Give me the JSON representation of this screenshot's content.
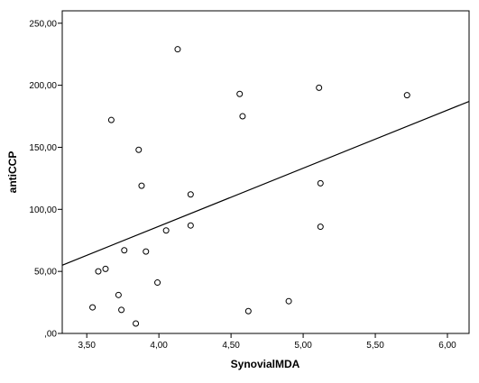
{
  "chart_data": {
    "type": "scatter",
    "xlabel": "SynovialMDA",
    "ylabel": "antiCCP",
    "xlim": [
      3.33,
      6.15
    ],
    "ylim": [
      0,
      260
    ],
    "x_ticks": [
      3.5,
      4.0,
      4.5,
      5.0,
      5.5,
      6.0
    ],
    "x_tick_labels": [
      "3,50",
      "4,00",
      "4,50",
      "5,00",
      "5,50",
      "6,00"
    ],
    "y_ticks": [
      0,
      50,
      100,
      150,
      200,
      250
    ],
    "y_tick_labels": [
      ",00",
      "50,00",
      "100,00",
      "150,00",
      "200,00",
      "250,00"
    ],
    "points": [
      {
        "x": 3.54,
        "y": 21
      },
      {
        "x": 3.58,
        "y": 50
      },
      {
        "x": 3.63,
        "y": 52
      },
      {
        "x": 3.67,
        "y": 172
      },
      {
        "x": 3.72,
        "y": 31
      },
      {
        "x": 3.74,
        "y": 19
      },
      {
        "x": 3.76,
        "y": 67
      },
      {
        "x": 3.84,
        "y": 8
      },
      {
        "x": 3.86,
        "y": 148
      },
      {
        "x": 3.88,
        "y": 119
      },
      {
        "x": 3.91,
        "y": 66
      },
      {
        "x": 3.99,
        "y": 41
      },
      {
        "x": 4.05,
        "y": 83
      },
      {
        "x": 4.13,
        "y": 229
      },
      {
        "x": 4.22,
        "y": 112
      },
      {
        "x": 4.22,
        "y": 87
      },
      {
        "x": 4.56,
        "y": 193
      },
      {
        "x": 4.58,
        "y": 175
      },
      {
        "x": 4.62,
        "y": 18
      },
      {
        "x": 4.9,
        "y": 26
      },
      {
        "x": 5.11,
        "y": 198
      },
      {
        "x": 5.12,
        "y": 121
      },
      {
        "x": 5.12,
        "y": 86
      },
      {
        "x": 5.72,
        "y": 192
      }
    ],
    "fit_line": {
      "x": [
        3.33,
        6.15
      ],
      "y": [
        55,
        187
      ]
    },
    "grid": false,
    "legend": "none"
  }
}
